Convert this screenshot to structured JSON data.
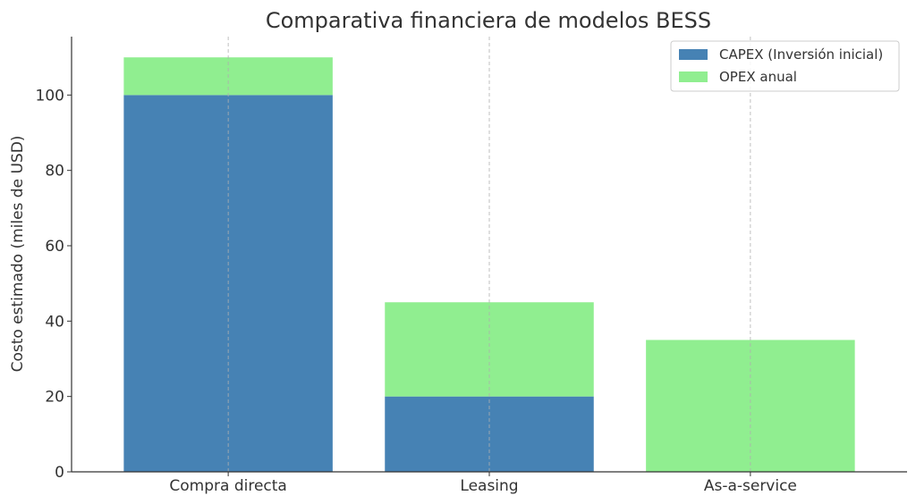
{
  "chart_data": {
    "type": "bar",
    "stacked": true,
    "title": "Comparativa financiera de modelos BESS",
    "xlabel": "",
    "ylabel": "Costo estimado (miles de USD)",
    "categories": [
      "Compra directa",
      "Leasing",
      "As-a-service"
    ],
    "series": [
      {
        "name": "CAPEX (Inversión inicial)",
        "values": [
          100,
          20,
          0
        ],
        "color": "#4682b4"
      },
      {
        "name": "OPEX anual",
        "values": [
          10,
          25,
          35
        ],
        "color": "#90ee90"
      }
    ],
    "ylim": [
      0,
      115.5
    ],
    "yticks": [
      0,
      20,
      40,
      60,
      80,
      100
    ],
    "grid": "vertical-dashed",
    "legend": "top-right"
  }
}
